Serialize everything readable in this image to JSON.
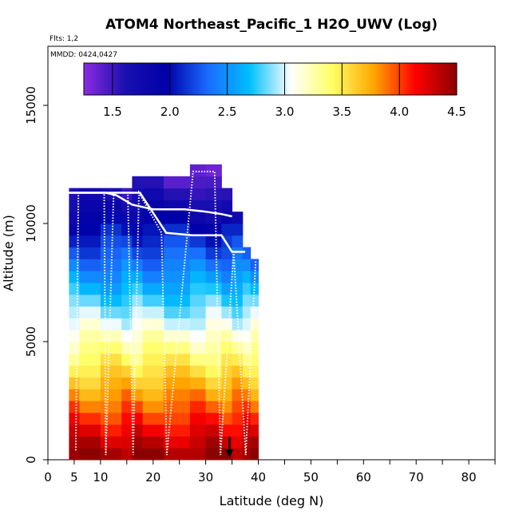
{
  "chart_data": {
    "type": "heatmap",
    "title": "ATOM4 Northeast_Pacific_1 H2O_UWV (Log)",
    "flights_label": "Flts: 1,2",
    "dates_label": "MMDD: 0424,0427",
    "xlabel": "Latitude (deg N)",
    "ylabel": "Altitude (m)",
    "xlim": [
      0,
      85
    ],
    "ylim": [
      0,
      17500
    ],
    "x_ticks": [
      0,
      5,
      10,
      20,
      30,
      40,
      50,
      60,
      70,
      80
    ],
    "x_tick_labels": [
      "0",
      "5",
      "10",
      "20",
      "30",
      "40",
      "50",
      "60",
      "70",
      "80"
    ],
    "y_ticks": [
      0,
      5000,
      10000,
      15000
    ],
    "y_tick_labels": [
      "0",
      "5000",
      "10000",
      "15000"
    ],
    "colorbar": {
      "min": 1.25,
      "max": 4.5,
      "ticks": [
        1.5,
        2.0,
        2.5,
        3.0,
        3.5,
        4.0,
        4.5
      ],
      "tick_labels": [
        "1.5",
        "2.0",
        "2.5",
        "3.0",
        "3.5",
        "4.0",
        "4.5"
      ],
      "colors": [
        "#8b2be2",
        "#1a0fb0",
        "#0000a8",
        "#1a6cff",
        "#00bfff",
        "#ffffff",
        "#ffff66",
        "#ffa500",
        "#ff0000",
        "#8b0000"
      ]
    },
    "columns": [
      {
        "lat_min": 4,
        "lat_max": 6,
        "alt_max": 11500
      },
      {
        "lat_min": 6,
        "lat_max": 10,
        "alt_max": 11500
      },
      {
        "lat_min": 10,
        "lat_max": 14,
        "alt_max": 11500
      },
      {
        "lat_min": 14,
        "lat_max": 16,
        "alt_max": 11500
      },
      {
        "lat_min": 16,
        "lat_max": 18,
        "alt_max": 12000
      },
      {
        "lat_min": 18,
        "lat_max": 22,
        "alt_max": 12000
      },
      {
        "lat_min": 22,
        "lat_max": 27,
        "alt_max": 12000
      },
      {
        "lat_min": 27,
        "lat_max": 30,
        "alt_max": 12500
      },
      {
        "lat_min": 30,
        "lat_max": 33,
        "alt_max": 12500
      },
      {
        "lat_min": 33,
        "lat_max": 35,
        "alt_max": 11500
      },
      {
        "lat_min": 35,
        "lat_max": 37,
        "alt_max": 10500
      },
      {
        "lat_min": 37,
        "lat_max": 38.5,
        "alt_max": 9000
      },
      {
        "lat_min": 38.5,
        "lat_max": 40,
        "alt_max": 8500
      }
    ],
    "profile": [
      [
        4,
        11300
      ],
      [
        5.5,
        11300
      ],
      [
        8,
        11300
      ],
      [
        10,
        11300
      ],
      [
        11,
        11300
      ],
      [
        13,
        11200
      ],
      [
        16,
        10800
      ],
      [
        18,
        10700
      ],
      [
        20,
        10600
      ],
      [
        23,
        10600
      ],
      [
        26,
        10600
      ],
      [
        30,
        10500
      ],
      [
        33,
        10400
      ],
      [
        35,
        10300
      ]
    ],
    "profile2": [
      [
        4,
        11300
      ],
      [
        5.3,
        11300
      ],
      [
        10.5,
        11300
      ],
      [
        13.5,
        11300
      ],
      [
        17.5,
        11300
      ],
      [
        22.5,
        9600
      ],
      [
        27.5,
        9500
      ],
      [
        33,
        9500
      ],
      [
        35,
        8800
      ],
      [
        37.5,
        8800
      ]
    ],
    "flight_track": [
      [
        5.3,
        400
      ],
      [
        5.8,
        11300
      ],
      [
        10.7,
        11300
      ],
      [
        11.0,
        200
      ],
      [
        12.5,
        11300
      ],
      [
        15.2,
        11300
      ],
      [
        16.2,
        200
      ],
      [
        17.3,
        11300
      ],
      [
        21.6,
        9600
      ],
      [
        22.6,
        200
      ],
      [
        27.6,
        12200
      ],
      [
        31.7,
        12200
      ],
      [
        32.8,
        200
      ],
      [
        35.3,
        8800
      ],
      [
        37.6,
        200
      ],
      [
        39.5,
        8400
      ]
    ],
    "arrow_lat": 34.5,
    "arrow_alt": 300
  }
}
